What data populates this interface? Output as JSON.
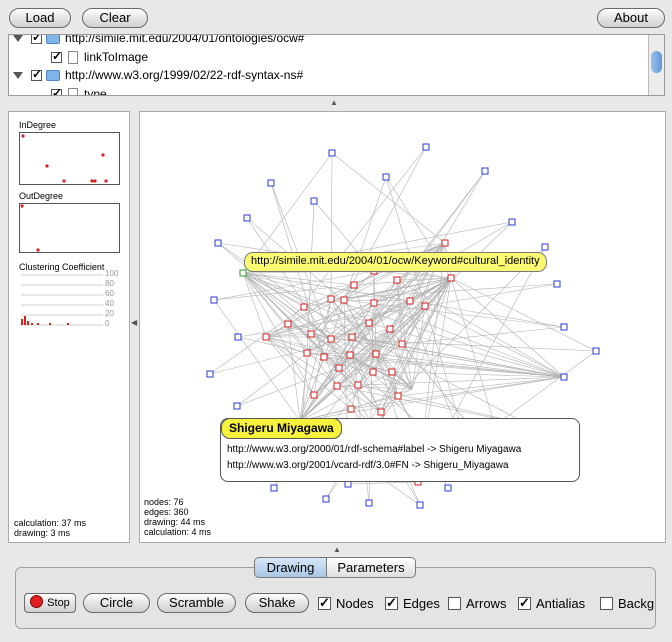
{
  "toolbar": {
    "load_label": "Load",
    "clear_label": "Clear",
    "about_label": "About"
  },
  "tree": {
    "rows": [
      {
        "text": "http://simile.mit.edu/2004/01/ontologies/ocw#"
      },
      {
        "text": "linkToImage"
      },
      {
        "text": "http://www.w3.org/1999/02/22-rdf-syntax-ns#"
      },
      {
        "text": "type"
      }
    ]
  },
  "left_panel": {
    "indegree_label": "InDegree",
    "outdegree_label": "OutDegree",
    "clustering_label": "Clustering Coefficient",
    "ticks": [
      "100",
      "80",
      "60",
      "40",
      "20",
      "0"
    ],
    "calculation": "calculation: 37 ms",
    "drawing": "drawing: 3 ms"
  },
  "graph": {
    "nodes_label": "nodes: 76",
    "edges_label": "edges: 360",
    "drawing_label": "drawing: 44 ms",
    "calculation_label": "calculation: 4 ms",
    "hover_tooltip": "http://simile.mit.edu/2004/01/ocw/Keyword#cultural_identity",
    "detail": {
      "title": "Shigeru Miyagawa",
      "line1": "http://www.w3.org/2000/01/rdf-schema#label -> Shigeru Miyagawa",
      "line2": "http://www.w3.org/2001/vcard-rdf/3.0#FN -> Shigeru_Miyagawa"
    }
  },
  "tabs": {
    "drawing_label": "Drawing",
    "parameters_label": "Parameters",
    "active": "Drawing"
  },
  "controls": {
    "stop_label": "Stop",
    "circle_label": "Circle",
    "scramble_label": "Scramble",
    "shake_label": "Shake",
    "nodes_label": "Nodes",
    "edges_label": "Edges",
    "arrows_label": "Arrows",
    "antialias_label": "Antialias",
    "background_label": "Backg",
    "nodes_checked": true,
    "edges_checked": true,
    "arrows_checked": false,
    "antialias_checked": true,
    "background_checked": false
  },
  "colors": {
    "outer_node": "#2b3bd6",
    "inner_node": "#d42020",
    "edge": "#9a9a9a",
    "tooltip": "#fafa73"
  }
}
